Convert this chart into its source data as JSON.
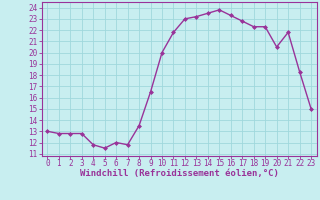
{
  "x": [
    0,
    1,
    2,
    3,
    4,
    5,
    6,
    7,
    8,
    9,
    10,
    11,
    12,
    13,
    14,
    15,
    16,
    17,
    18,
    19,
    20,
    21,
    22,
    23
  ],
  "y": [
    13,
    12.8,
    12.8,
    12.8,
    11.8,
    11.5,
    12.0,
    11.8,
    13.5,
    16.5,
    20.0,
    21.8,
    23.0,
    23.2,
    23.5,
    23.8,
    23.3,
    22.8,
    22.3,
    22.3,
    20.5,
    21.8,
    18.3,
    15.0
  ],
  "line_color": "#993399",
  "marker": "D",
  "marker_size": 2,
  "bg_color": "#c8eef0",
  "grid_color": "#a0d8dc",
  "ylabel_ticks": [
    11,
    12,
    13,
    14,
    15,
    16,
    17,
    18,
    19,
    20,
    21,
    22,
    23,
    24
  ],
  "xlabel": "Windchill (Refroidissement éolien,°C)",
  "ylim": [
    10.8,
    24.5
  ],
  "xlim": [
    -0.5,
    23.5
  ],
  "xlabel_fontsize": 6.5,
  "tick_fontsize": 5.5,
  "line_width": 1.0
}
